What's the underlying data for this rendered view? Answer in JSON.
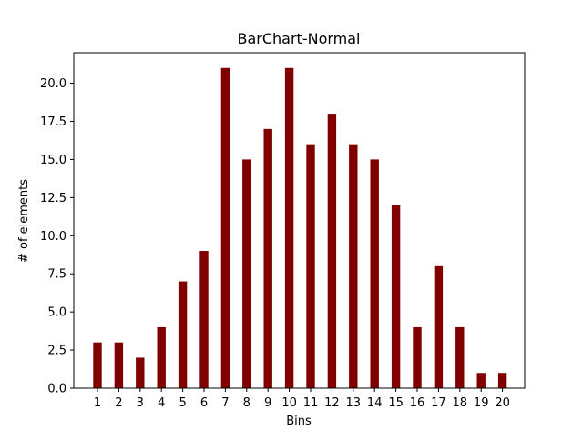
{
  "chart_data": {
    "type": "bar",
    "title": "BarChart-Normal",
    "xlabel": "Bins",
    "ylabel": "# of elements",
    "categories": [
      "1",
      "2",
      "3",
      "4",
      "5",
      "6",
      "7",
      "8",
      "9",
      "10",
      "11",
      "12",
      "13",
      "14",
      "15",
      "16",
      "17",
      "18",
      "19",
      "20"
    ],
    "values": [
      3,
      3,
      2,
      4,
      7,
      9,
      21,
      15,
      17,
      21,
      16,
      18,
      16,
      15,
      12,
      4,
      8,
      4,
      1,
      1
    ],
    "ylim": [
      0,
      22
    ],
    "yticks": [
      0.0,
      2.5,
      5.0,
      7.5,
      10.0,
      12.5,
      15.0,
      17.5,
      20.0
    ],
    "ytick_labels": [
      "0.0",
      "2.5",
      "5.0",
      "7.5",
      "10.0",
      "12.5",
      "15.0",
      "17.5",
      "20.0"
    ],
    "bar_color": "#800000",
    "grid": false,
    "legend": "none"
  }
}
